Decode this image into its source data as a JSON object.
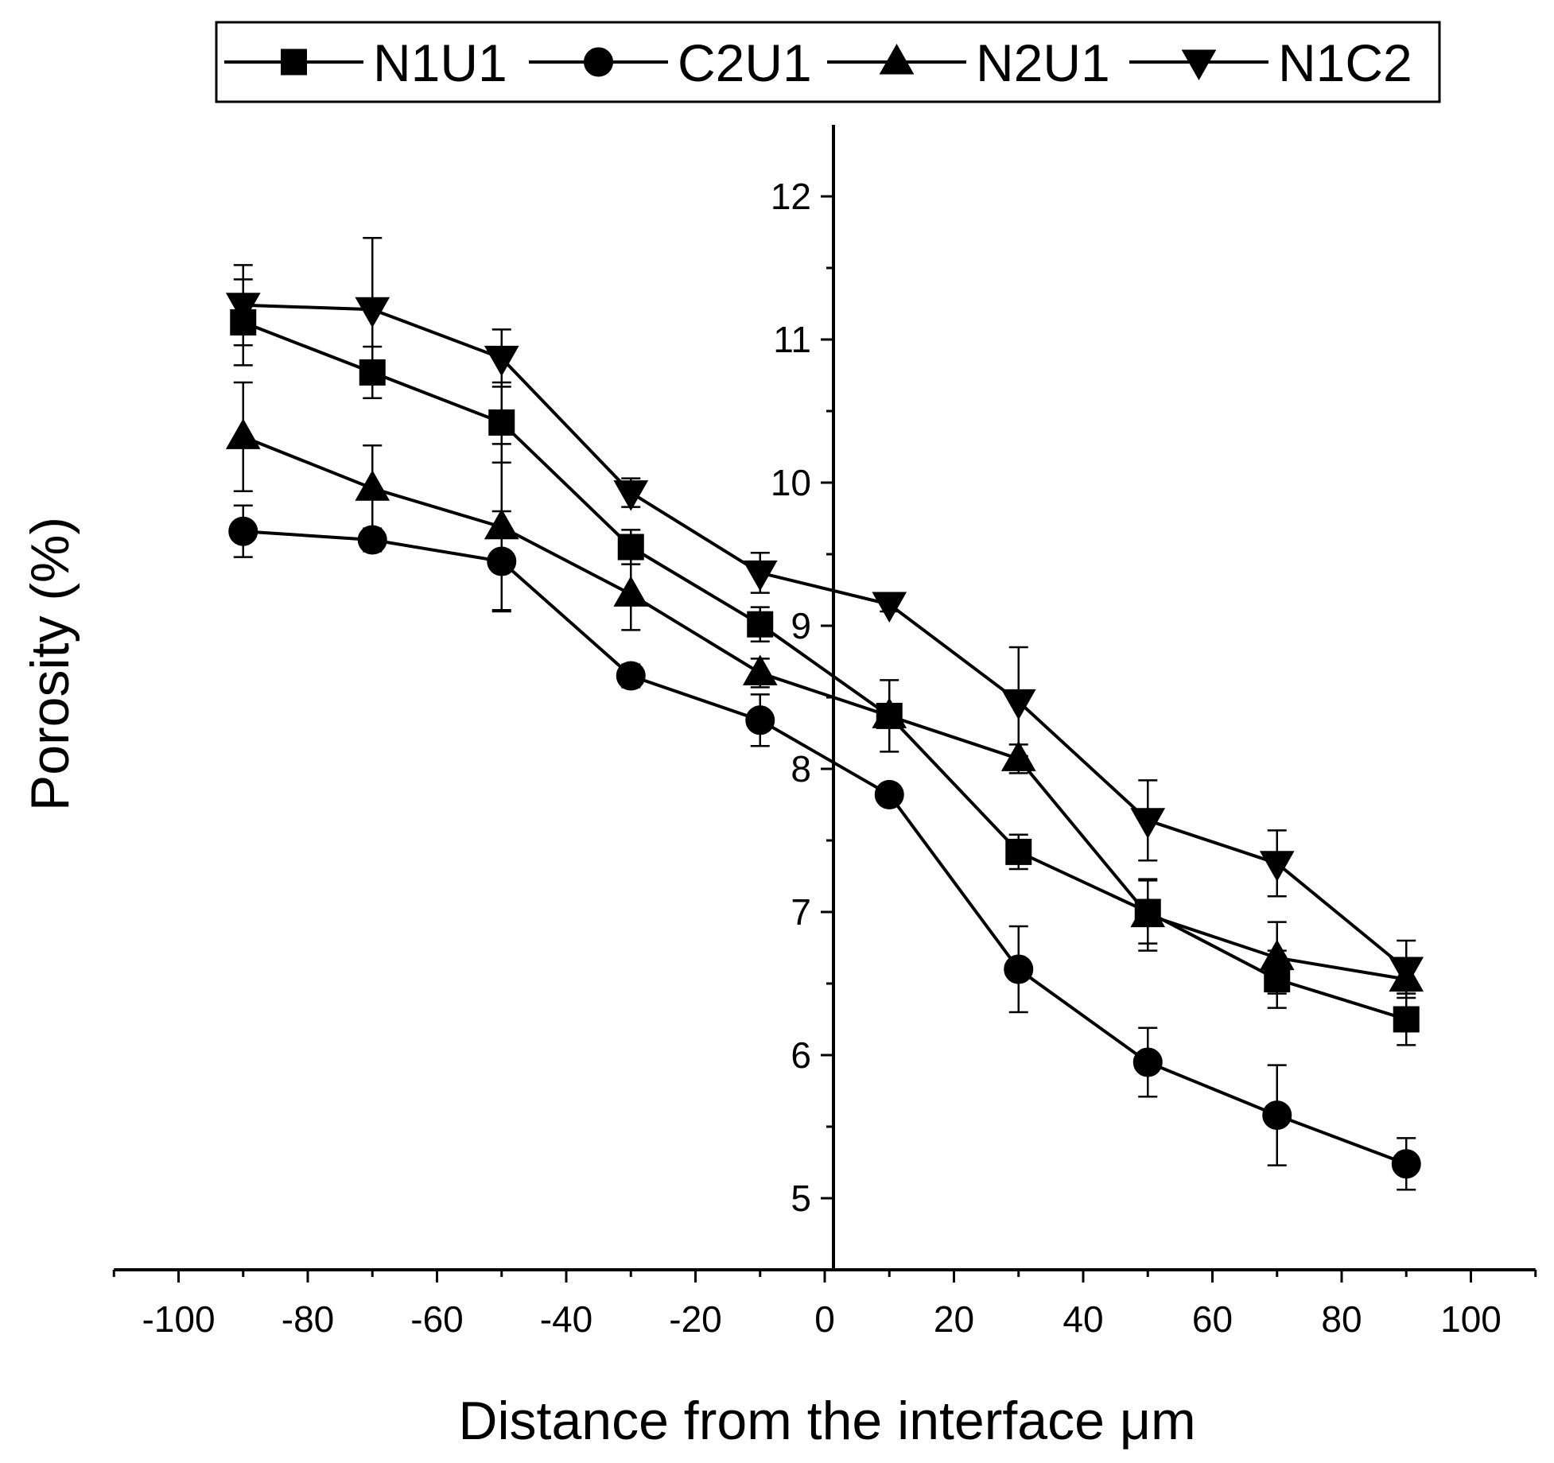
{
  "chart_data": {
    "type": "line",
    "title": "",
    "xlabel": "Distance from the interface μm",
    "ylabel": "Porosity (%)",
    "xlim": [
      -110,
      110
    ],
    "ylim": [
      4.6,
      12.5
    ],
    "x_ticks": [
      -100,
      -80,
      -60,
      -40,
      -20,
      0,
      20,
      40,
      60,
      80,
      100
    ],
    "y_ticks": [
      5,
      6,
      7,
      8,
      9,
      10,
      11,
      12
    ],
    "x_tick_labels": [
      "-100",
      "-80",
      "-60",
      "-40",
      "-20",
      "0",
      "20",
      "40",
      "60",
      "80",
      "100"
    ],
    "y_tick_labels": [
      "5",
      "6",
      "7",
      "8",
      "9",
      "10",
      "11",
      "12"
    ],
    "legend_position": "top",
    "x": [
      -90,
      -70,
      -50,
      -30,
      -10,
      10,
      30,
      50,
      70,
      90
    ],
    "series": [
      {
        "name": "N1U1",
        "marker": "square",
        "values": [
          11.12,
          10.77,
          10.42,
          9.55,
          9.01,
          8.37,
          7.42,
          7.0,
          6.53,
          6.25
        ],
        "errors": [
          0.3,
          0.18,
          0.28,
          0.12,
          0.12,
          0.25,
          0.12,
          0.22,
          0.2,
          0.18
        ]
      },
      {
        "name": "C2U1",
        "marker": "circle",
        "values": [
          9.66,
          9.6,
          9.45,
          8.65,
          8.34,
          7.82,
          6.6,
          5.95,
          5.58,
          5.24
        ],
        "errors": [
          0.18,
          0.08,
          0.35,
          0.08,
          0.18,
          0.05,
          0.3,
          0.24,
          0.35,
          0.18
        ]
      },
      {
        "name": "N2U1",
        "marker": "triangle-up",
        "values": [
          10.32,
          9.96,
          9.69,
          9.22,
          8.67,
          8.37,
          8.07,
          6.98,
          6.68,
          6.53
        ],
        "errors": [
          0.38,
          0.3,
          0.58,
          0.25,
          0.1,
          0.08,
          0.1,
          0.25,
          0.25,
          0.08
        ]
      },
      {
        "name": "N1C2",
        "marker": "triangle-down",
        "values": [
          11.24,
          11.21,
          10.87,
          9.93,
          9.37,
          9.15,
          8.47,
          7.64,
          7.34,
          6.6
        ],
        "errors": [
          0.28,
          0.5,
          0.2,
          0.1,
          0.14,
          0.05,
          0.38,
          0.28,
          0.23,
          0.2
        ]
      }
    ]
  }
}
